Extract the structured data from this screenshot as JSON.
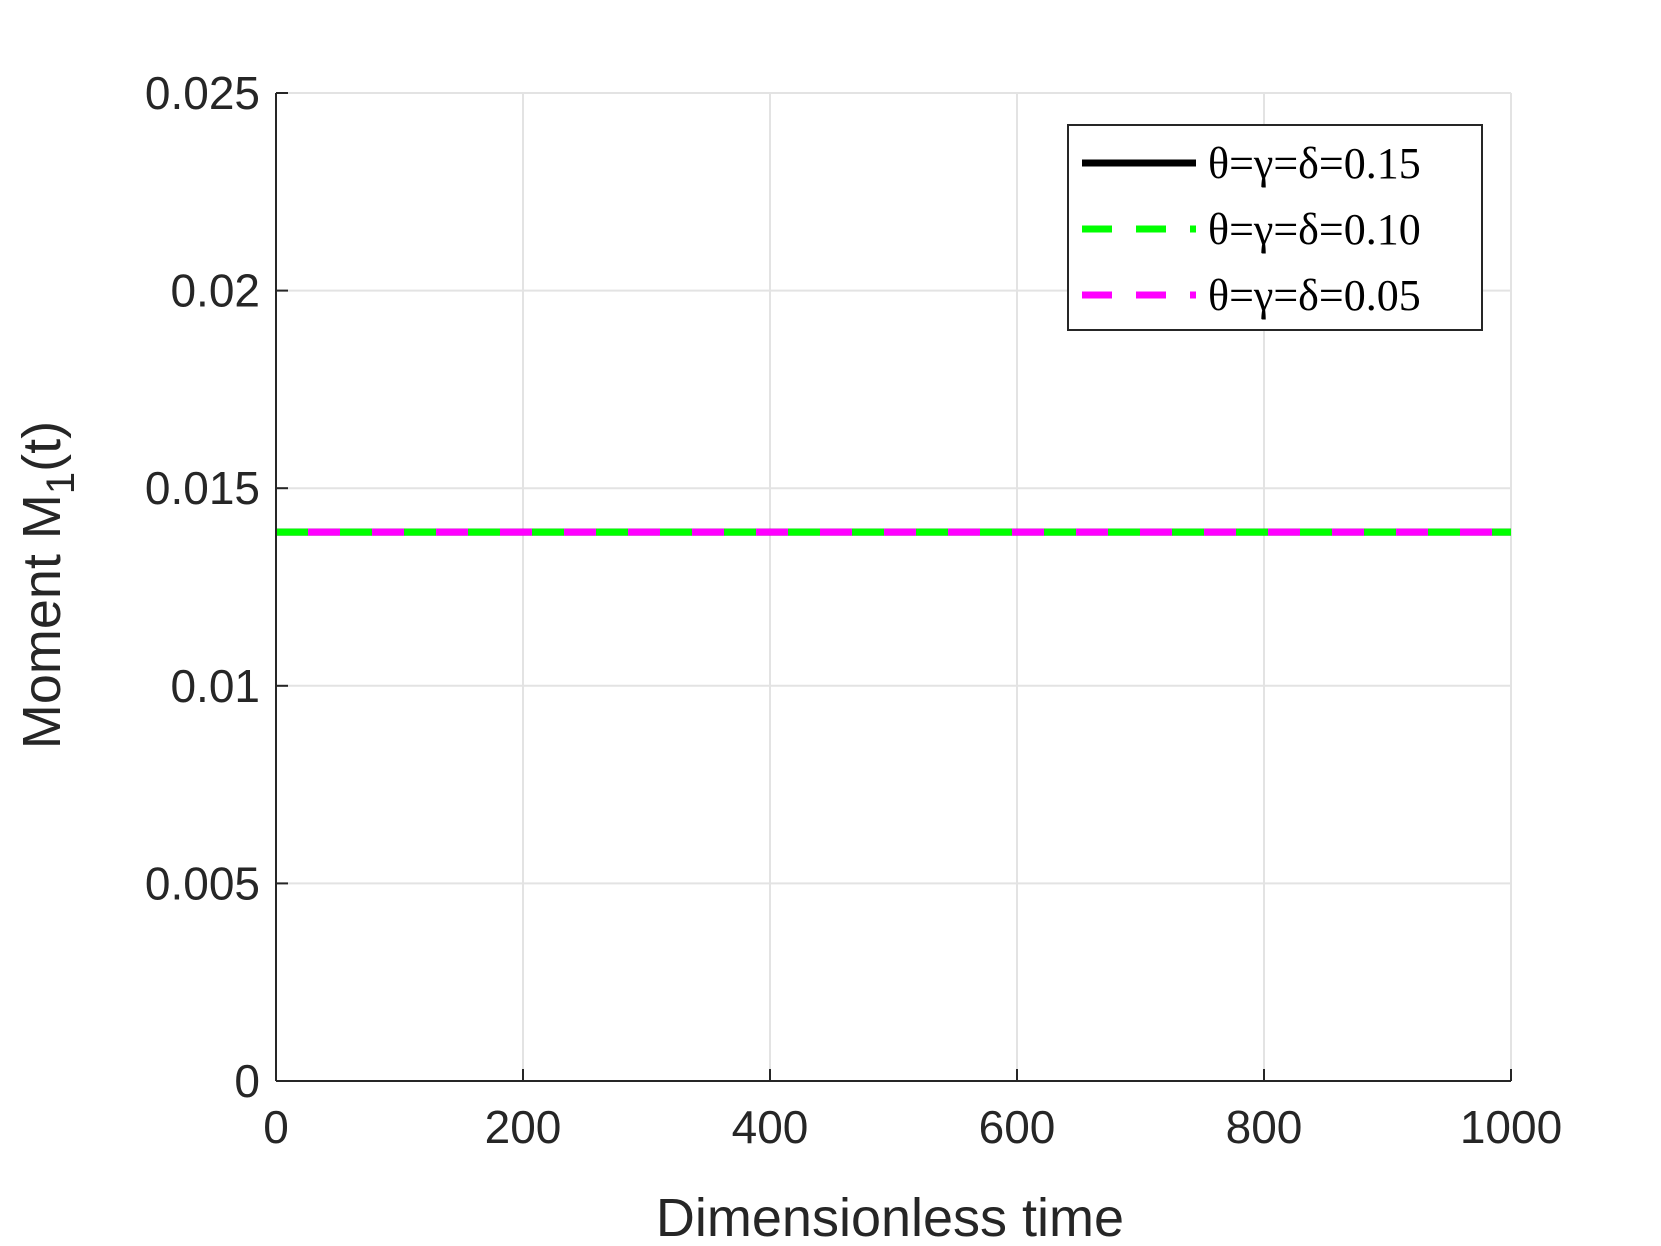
{
  "chart_data": {
    "type": "line",
    "xlabel": "Dimensionless time",
    "ylabel": "Moment M",
    "ylabel_sub": "1",
    "ylabel_suffix": "(t)",
    "xlim": [
      0,
      1000
    ],
    "ylim": [
      0,
      0.025
    ],
    "xticks": [
      0,
      200,
      400,
      600,
      800,
      1000
    ],
    "xtick_labels": [
      "0",
      "200",
      "400",
      "600",
      "800",
      "1000"
    ],
    "yticks": [
      0,
      0.005,
      0.01,
      0.015,
      0.02,
      0.025
    ],
    "ytick_labels": [
      "0",
      "0.005",
      "0.01",
      "0.015",
      "0.02",
      "0.025"
    ],
    "grid": true,
    "legend_position": "top-right",
    "series": [
      {
        "name": "θ=γ=δ=0.15",
        "color": "#000000",
        "style": "solid",
        "x": [
          0,
          1000
        ],
        "y": [
          0.01389,
          0.01389
        ]
      },
      {
        "name": "θ=γ=δ=0.10",
        "color": "#00ff00",
        "style": "dashed",
        "x": [
          0,
          1000
        ],
        "y": [
          0.01389,
          0.01389
        ]
      },
      {
        "name": "θ=γ=δ=0.05",
        "color": "#ff00ff",
        "style": "dashed",
        "x": [
          0,
          1000
        ],
        "y": [
          0.01389,
          0.01389
        ]
      }
    ]
  }
}
